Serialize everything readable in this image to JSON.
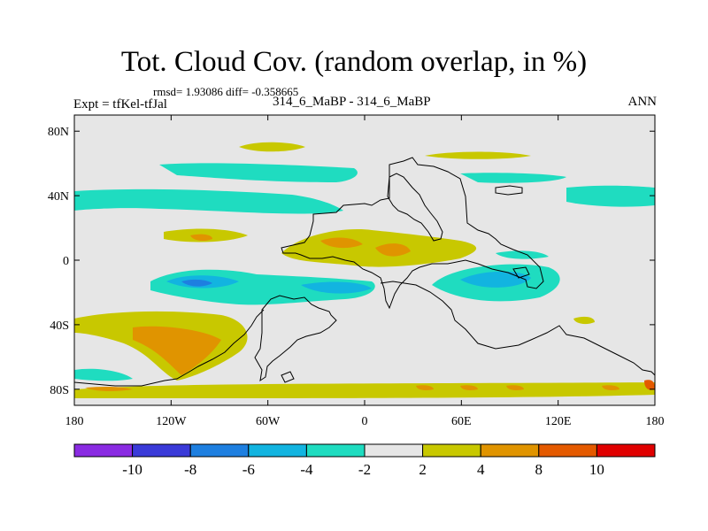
{
  "title": "Tot. Cloud Cov. (random overlap, in %)",
  "stats": "rmsd= 1.93086 diff= -0.358665",
  "left_label": "Expt = tfKel-tfJal",
  "center_label": "314_6_MaBP - 314_6_MaBP",
  "right_label": "ANN",
  "lat_ticks": [
    {
      "value": 80,
      "label": "80N"
    },
    {
      "value": 40,
      "label": "40N"
    },
    {
      "value": 0,
      "label": "0"
    },
    {
      "value": -40,
      "label": "40S"
    },
    {
      "value": -80,
      "label": "80S"
    }
  ],
  "lon_ticks": [
    {
      "value": -180,
      "label": "180"
    },
    {
      "value": -120,
      "label": "120W"
    },
    {
      "value": -60,
      "label": "60W"
    },
    {
      "value": 0,
      "label": "0"
    },
    {
      "value": 60,
      "label": "60E"
    },
    {
      "value": 120,
      "label": "120E"
    },
    {
      "value": 180,
      "label": "180"
    }
  ],
  "colorbar": {
    "colors": [
      "#8a2be2",
      "#3a3ad8",
      "#1e7fe0",
      "#12b4e0",
      "#1fdcc0",
      "#e6e6e6",
      "#c8c800",
      "#e09400",
      "#e45a00",
      "#e00000"
    ],
    "labels": [
      "-10",
      "-8",
      "-6",
      "-4",
      "-2",
      "2",
      "4",
      "8",
      "10"
    ]
  },
  "colors": {
    "background": "#e6e6e6",
    "coast": "#000000"
  }
}
